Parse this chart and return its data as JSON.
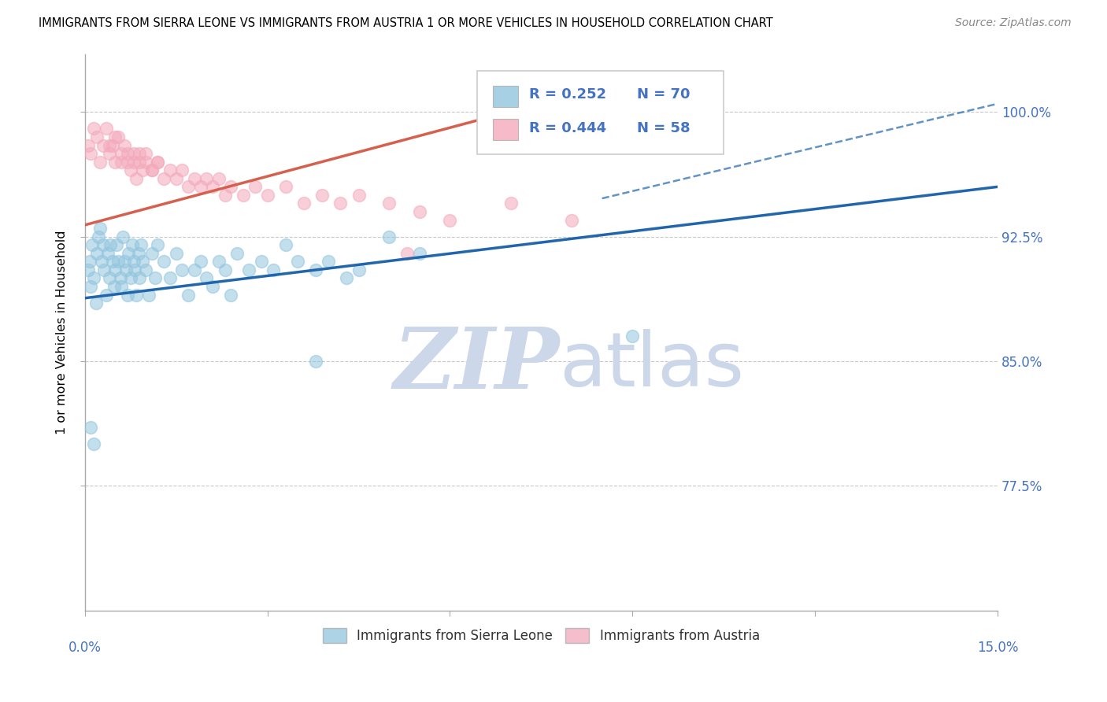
{
  "title": "IMMIGRANTS FROM SIERRA LEONE VS IMMIGRANTS FROM AUSTRIA 1 OR MORE VEHICLES IN HOUSEHOLD CORRELATION CHART",
  "source": "Source: ZipAtlas.com",
  "ylabel": "1 or more Vehicles in Household",
  "xlim": [
    0.0,
    15.0
  ],
  "ylim": [
    70.0,
    103.5
  ],
  "ytick_positions": [
    77.5,
    85.0,
    92.5,
    100.0
  ],
  "ytick_labels": [
    "77.5%",
    "85.0%",
    "92.5%",
    "100.0%"
  ],
  "legend1_label": "Immigrants from Sierra Leone",
  "legend2_label": "Immigrants from Austria",
  "sl_color": "#92c5de",
  "at_color": "#f4a9bb",
  "sl_line_color": "#2166ac",
  "at_line_color": "#d6604d",
  "R_sl": 0.252,
  "N_sl": 70,
  "R_at": 0.444,
  "N_at": 58,
  "sl_line_x0": 0.0,
  "sl_line_x1": 15.0,
  "sl_line_y0": 88.8,
  "sl_line_y1": 95.5,
  "at_line_x0": 0.0,
  "at_line_x1": 8.5,
  "at_line_y0": 93.2,
  "at_line_y1": 101.5,
  "sl_dash_x0": 8.5,
  "sl_dash_x1": 15.0,
  "sl_dash_y0": 94.8,
  "sl_dash_y1": 100.5,
  "sl_x": [
    0.05,
    0.08,
    0.1,
    0.12,
    0.15,
    0.18,
    0.2,
    0.22,
    0.25,
    0.28,
    0.3,
    0.32,
    0.35,
    0.38,
    0.4,
    0.42,
    0.45,
    0.48,
    0.5,
    0.52,
    0.55,
    0.58,
    0.6,
    0.62,
    0.65,
    0.68,
    0.7,
    0.72,
    0.75,
    0.78,
    0.8,
    0.82,
    0.85,
    0.88,
    0.9,
    0.92,
    0.95,
    1.0,
    1.05,
    1.1,
    1.15,
    1.2,
    1.3,
    1.4,
    1.5,
    1.6,
    1.7,
    1.8,
    1.9,
    2.0,
    2.1,
    2.2,
    2.3,
    2.4,
    2.5,
    2.7,
    2.9,
    3.1,
    3.3,
    3.5,
    3.8,
    4.0,
    4.3,
    4.5,
    5.0,
    5.5,
    3.8,
    0.1,
    0.15,
    9.0
  ],
  "sl_y": [
    90.5,
    91.0,
    89.5,
    92.0,
    90.0,
    88.5,
    91.5,
    92.5,
    93.0,
    91.0,
    92.0,
    90.5,
    89.0,
    91.5,
    90.0,
    92.0,
    91.0,
    89.5,
    90.5,
    92.0,
    91.0,
    90.0,
    89.5,
    92.5,
    91.0,
    90.5,
    89.0,
    91.5,
    90.0,
    92.0,
    91.0,
    90.5,
    89.0,
    91.5,
    90.0,
    92.0,
    91.0,
    90.5,
    89.0,
    91.5,
    90.0,
    92.0,
    91.0,
    90.0,
    91.5,
    90.5,
    89.0,
    90.5,
    91.0,
    90.0,
    89.5,
    91.0,
    90.5,
    89.0,
    91.5,
    90.5,
    91.0,
    90.5,
    92.0,
    91.0,
    90.5,
    91.0,
    90.0,
    90.5,
    92.5,
    91.5,
    85.0,
    81.0,
    80.0,
    86.5
  ],
  "at_x": [
    0.05,
    0.1,
    0.15,
    0.2,
    0.25,
    0.3,
    0.35,
    0.4,
    0.45,
    0.5,
    0.55,
    0.6,
    0.65,
    0.7,
    0.75,
    0.8,
    0.85,
    0.9,
    0.95,
    1.0,
    1.1,
    1.2,
    1.3,
    1.4,
    1.5,
    1.6,
    1.7,
    1.8,
    1.9,
    2.0,
    2.1,
    2.2,
    2.3,
    2.4,
    2.6,
    2.8,
    3.0,
    3.3,
    3.6,
    3.9,
    4.2,
    4.5,
    5.0,
    5.5,
    6.0,
    7.0,
    8.0,
    0.8,
    0.9,
    1.0,
    1.1,
    1.2,
    0.4,
    0.5,
    0.6,
    0.7,
    7.8,
    5.3
  ],
  "at_y": [
    98.0,
    97.5,
    99.0,
    98.5,
    97.0,
    98.0,
    99.0,
    97.5,
    98.0,
    97.0,
    98.5,
    97.0,
    98.0,
    97.5,
    96.5,
    97.0,
    96.0,
    97.5,
    96.5,
    97.0,
    96.5,
    97.0,
    96.0,
    96.5,
    96.0,
    96.5,
    95.5,
    96.0,
    95.5,
    96.0,
    95.5,
    96.0,
    95.0,
    95.5,
    95.0,
    95.5,
    95.0,
    95.5,
    94.5,
    95.0,
    94.5,
    95.0,
    94.5,
    94.0,
    93.5,
    94.5,
    93.5,
    97.5,
    97.0,
    97.5,
    96.5,
    97.0,
    98.0,
    98.5,
    97.5,
    97.0,
    100.0,
    91.5
  ]
}
